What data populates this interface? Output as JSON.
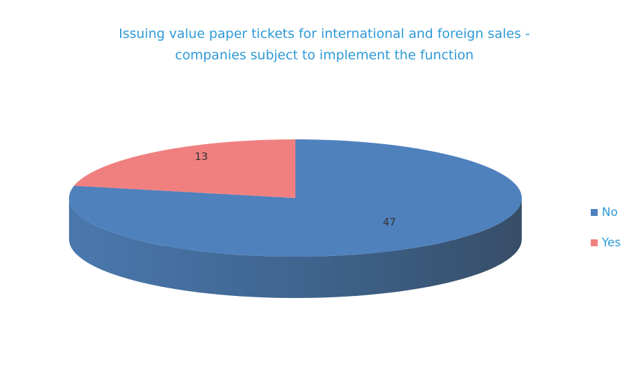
{
  "chart_data": {
    "type": "pie3d",
    "title": "Issuing value paper tickets for international and foreign sales - companies subject to implement the function",
    "categories": [
      "No",
      "Yes"
    ],
    "values": [
      47,
      13
    ],
    "colors": [
      "#4f81bd",
      "#f08080"
    ],
    "legend": "right"
  }
}
